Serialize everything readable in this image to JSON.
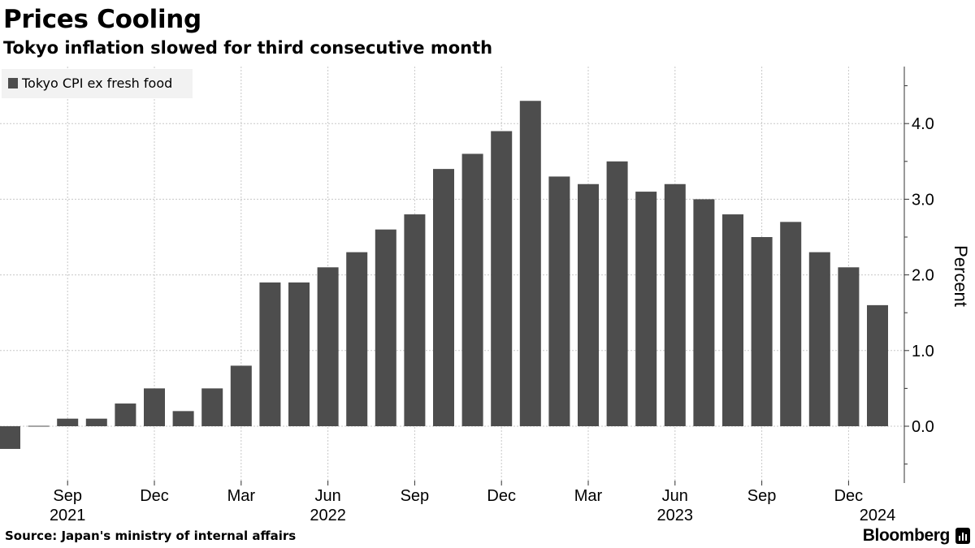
{
  "header": {
    "title": "Prices Cooling",
    "subtitle": "Tokyo inflation slowed for third consecutive month"
  },
  "footer": {
    "source": "Source: Japan's ministry of internal affairs",
    "brand": "Bloomberg"
  },
  "chart_data": {
    "type": "bar",
    "title": "Prices Cooling",
    "subtitle": "Tokyo inflation slowed for third consecutive month",
    "ylabel": "Percent",
    "xlabel": "",
    "ylim": [
      -0.6,
      4.7
    ],
    "yticks": [
      0.0,
      1.0,
      2.0,
      3.0,
      4.0
    ],
    "ytick_labels": [
      "0.0",
      "1.0",
      "2.0",
      "3.0",
      "4.0"
    ],
    "grid": true,
    "legend_position": "top-left",
    "bar_color": "#4d4d4d",
    "categories": [
      "2021-07",
      "2021-08",
      "2021-09",
      "2021-10",
      "2021-11",
      "2021-12",
      "2022-01",
      "2022-02",
      "2022-03",
      "2022-04",
      "2022-05",
      "2022-06",
      "2022-07",
      "2022-08",
      "2022-09",
      "2022-10",
      "2022-11",
      "2022-12",
      "2023-01",
      "2023-02",
      "2023-03",
      "2023-04",
      "2023-05",
      "2023-06",
      "2023-07",
      "2023-08",
      "2023-09",
      "2023-10",
      "2023-11",
      "2023-12",
      "2024-01"
    ],
    "series": [
      {
        "name": "Tokyo CPI ex fresh food",
        "values": [
          -0.3,
          0.0,
          0.1,
          0.1,
          0.3,
          0.5,
          0.2,
          0.5,
          0.8,
          1.9,
          1.9,
          2.1,
          2.3,
          2.6,
          2.8,
          3.4,
          3.6,
          3.9,
          4.3,
          3.3,
          3.2,
          3.5,
          3.1,
          3.2,
          3.0,
          2.8,
          2.5,
          2.7,
          2.3,
          2.1,
          1.6
        ]
      }
    ],
    "x_tick_labels": [
      {
        "label": "Sep",
        "category": "2021-09"
      },
      {
        "label": "Dec",
        "category": "2021-12"
      },
      {
        "label": "Mar",
        "category": "2022-03"
      },
      {
        "label": "Jun",
        "category": "2022-06"
      },
      {
        "label": "Sep",
        "category": "2022-09"
      },
      {
        "label": "Dec",
        "category": "2022-12"
      },
      {
        "label": "Mar",
        "category": "2023-03"
      },
      {
        "label": "Jun",
        "category": "2023-06"
      },
      {
        "label": "Sep",
        "category": "2023-09"
      },
      {
        "label": "Dec",
        "category": "2023-12"
      }
    ],
    "year_labels": [
      {
        "label": "2021",
        "category": "2021-09"
      },
      {
        "label": "2022",
        "category": "2022-06"
      },
      {
        "label": "2023",
        "category": "2023-06"
      },
      {
        "label": "2024",
        "category": "2024-01"
      }
    ]
  }
}
